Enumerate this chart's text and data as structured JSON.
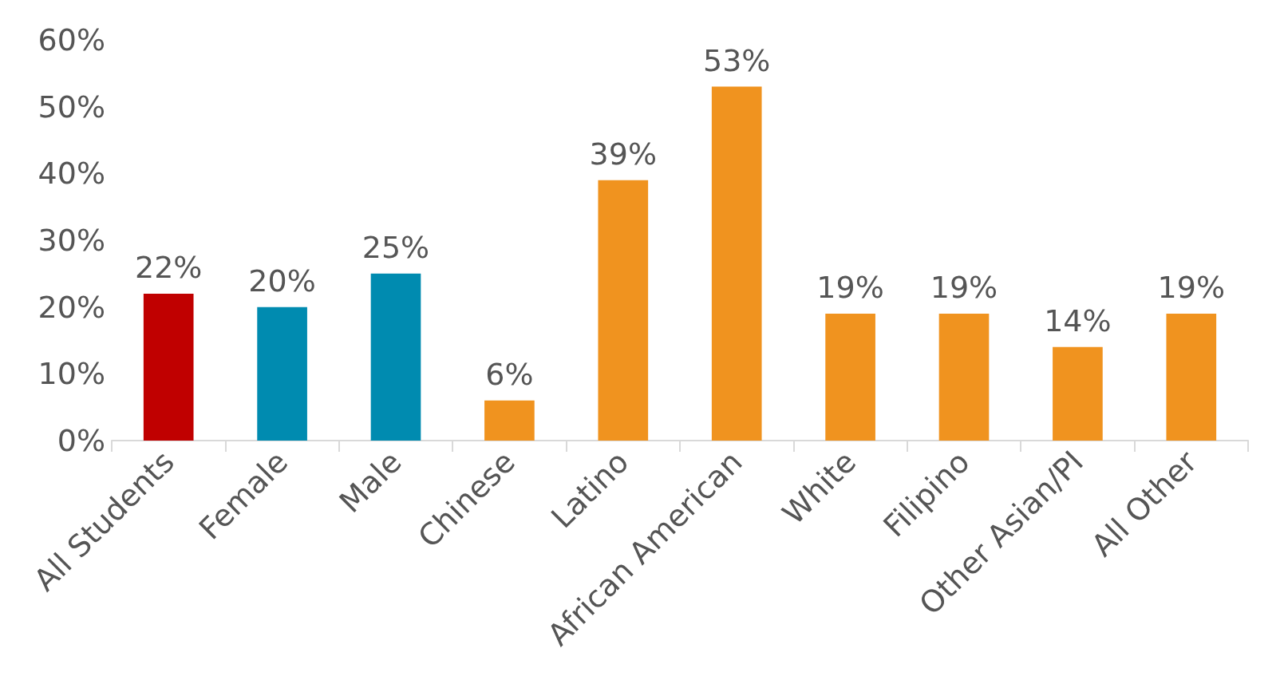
{
  "chart_data": {
    "type": "bar",
    "categories": [
      "All Students",
      "Female",
      "Male",
      "Chinese",
      "Latino",
      "African American",
      "White",
      "Filipino",
      "Other Asian/PI",
      "All Other"
    ],
    "values": [
      22,
      20,
      25,
      6,
      39,
      53,
      19,
      19,
      14,
      19
    ],
    "colors": [
      "#c00000",
      "#008bb0",
      "#008bb0",
      "#f0931f",
      "#f0931f",
      "#f0931f",
      "#f0931f",
      "#f0931f",
      "#f0931f",
      "#f0931f"
    ],
    "value_labels": [
      "22%",
      "20%",
      "25%",
      "6%",
      "39%",
      "53%",
      "19%",
      "19%",
      "14%",
      "19%"
    ],
    "ylim": [
      0,
      60
    ],
    "yticks": [
      {
        "value": 0,
        "label": "0%"
      },
      {
        "value": 10,
        "label": "10%"
      },
      {
        "value": 20,
        "label": "20%"
      },
      {
        "value": 30,
        "label": "30%"
      },
      {
        "value": 40,
        "label": "40%"
      },
      {
        "value": 50,
        "label": "50%"
      },
      {
        "value": 60,
        "label": "60%"
      }
    ],
    "grid": false
  }
}
